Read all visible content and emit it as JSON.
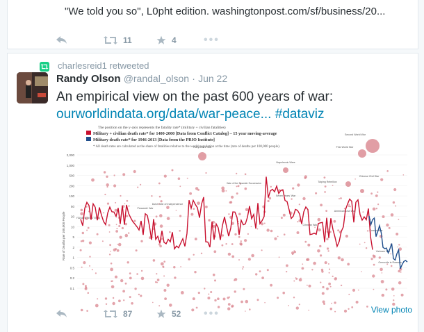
{
  "prev_tweet": {
    "text": "\"We told you so\", L0pht edition. washingtonpost.com/sf/business/20...",
    "retweets": "11",
    "favorites": "4"
  },
  "tweet": {
    "retweeted_by": "charlesreid1 retweeted",
    "author_name": "Randy Olson",
    "author_handle": "@randal_olson",
    "separator": "·",
    "date": "Jun 22",
    "text": "An empirical view on the past 600 years of war:",
    "link": "ourworldindata.org/data/war-peace...",
    "hashtag": "#dataviz",
    "retweets": "87",
    "favorites": "52",
    "view_photo": "View photo"
  },
  "chart_image": {
    "header_line1": "The position on the y-axis represents the fatality rate* (military + civilian fatalities)",
    "legend_red": "Military + civilian death rate* for 1400-2000 [Data from Conflict Catalog] – 15 year moving-average",
    "legend_blue": "Military death rate* for 1946-2013 [Data from the PRIO Institute]",
    "footnote": "* All death rates are calculated as the share of fatalities relative to the world population at the time (rate of deaths per 100,000 people).",
    "ylabel": "Rate of Deaths per 100,000 People",
    "yticks": [
      "2,000",
      "1,000",
      "500",
      "200",
      "100",
      "50",
      "20",
      "10",
      "5",
      "2",
      "1",
      "0.5",
      "0.2",
      "0.1"
    ],
    "annotations": [
      "Thirty Years' War",
      "Napoleonic Wars",
      "Second World War",
      "First World War",
      "Taiping Rebellion",
      "Seven Years' War",
      "War of the Spanish Succession",
      "Dutch War of Independence",
      "Peasants' War",
      "Hundred Years' War",
      "Crimean War",
      "American Civil War",
      "Chinese Civil War",
      "Korean War",
      "Vietnam War",
      "Genocide in Rwanda"
    ],
    "colors": {
      "red": "#c8102e",
      "blue": "#1f4e8c",
      "points": "#d9868f"
    }
  },
  "icons": {
    "reply": "reply-icon",
    "retweet": "retweet-icon",
    "favorite": "star-icon",
    "more": "more-icon"
  }
}
